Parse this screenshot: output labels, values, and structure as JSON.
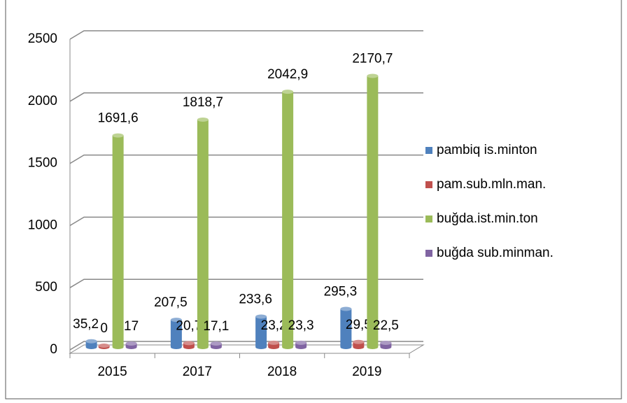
{
  "chart_data": {
    "type": "bar3d",
    "categories": [
      "2015",
      "2017",
      "2018",
      "2019"
    ],
    "series": [
      {
        "name": "pambiq is.minton",
        "color": "#4f81bd",
        "values": [
          35.2,
          207.5,
          233.6,
          295.3
        ],
        "value_labels": [
          "35,2",
          "207,5",
          "233,6",
          "295,3"
        ]
      },
      {
        "name": "pam.sub.mln.man.",
        "color": "#c0504d",
        "values": [
          0,
          20.7,
          23.2,
          29.5
        ],
        "value_labels": [
          "0",
          "20,7",
          "23,2",
          "29,5"
        ]
      },
      {
        "name": "buğda.ist.min.ton",
        "color": "#9bbb59",
        "values": [
          1691.6,
          1818.7,
          2042.9,
          2170.7
        ],
        "value_labels": [
          "1691,6",
          "1818,7",
          "2042,9",
          "2170,7"
        ]
      },
      {
        "name": "buğda sub.minman.",
        "color": "#8064a2",
        "values": [
          17,
          17.1,
          23.3,
          22.5
        ],
        "value_labels": [
          "17",
          "17,1",
          "23,3",
          "22,5"
        ]
      }
    ],
    "ylim": [
      0,
      2500
    ],
    "yticks": [
      0,
      500,
      1000,
      1500,
      2000,
      2500
    ],
    "grid": true,
    "legend": "right"
  }
}
